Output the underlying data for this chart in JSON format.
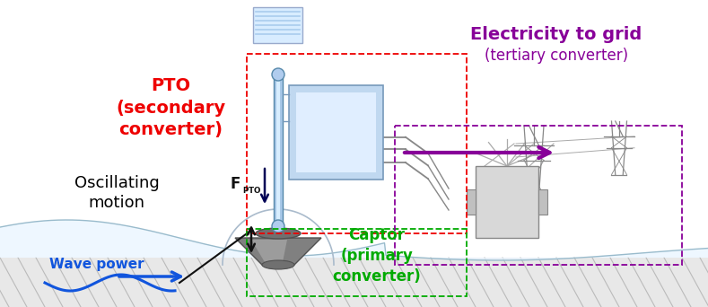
{
  "fig_width": 7.89,
  "fig_height": 3.42,
  "dpi": 100,
  "bg_color": "#ffffff",
  "label_pto": "PTO\n(secondary\nconverter)",
  "label_pto_color": "#ee0000",
  "label_captor": "Captor\n(primary\nconverter)",
  "label_captor_color": "#00aa00",
  "label_elec_line1": "Electricity to grid",
  "label_elec_line2": "(tertiary converter)",
  "label_elec_color": "#880099",
  "label_osc": "Oscillating\nmotion",
  "label_osc_color": "#000000",
  "label_wave": "Wave power",
  "label_wave_color": "#1155dd",
  "label_fpto_color": "#111111",
  "box_pto_color": "#ee0000",
  "box_captor_color": "#00aa00",
  "box_elec_color": "#880099",
  "arrow_elec_color": "#880099",
  "arrow_wave_color": "#1155dd",
  "arrow_fpto_color": "#000055",
  "pto_body_color": "#a8c8e8",
  "pto_body_edge": "#5588aa",
  "generator_color_top": "#ddeeff",
  "generator_color_bot": "#a8c0e0",
  "generator_edge": "#7799bb",
  "captor_dark": "#606060",
  "captor_mid": "#909090",
  "captor_light": "#b8b8b8",
  "ball_color": "#b0ccee",
  "ball_edge": "#5588aa",
  "coil_color": "#d8ecff",
  "coil_edge": "#99aacc",
  "cable_color": "#888888",
  "ground_color": "#e8e8e8",
  "ground_line_color": "#bbbbbb",
  "sea_color": "#e8f4ff",
  "sea_edge": "#99bbcc"
}
